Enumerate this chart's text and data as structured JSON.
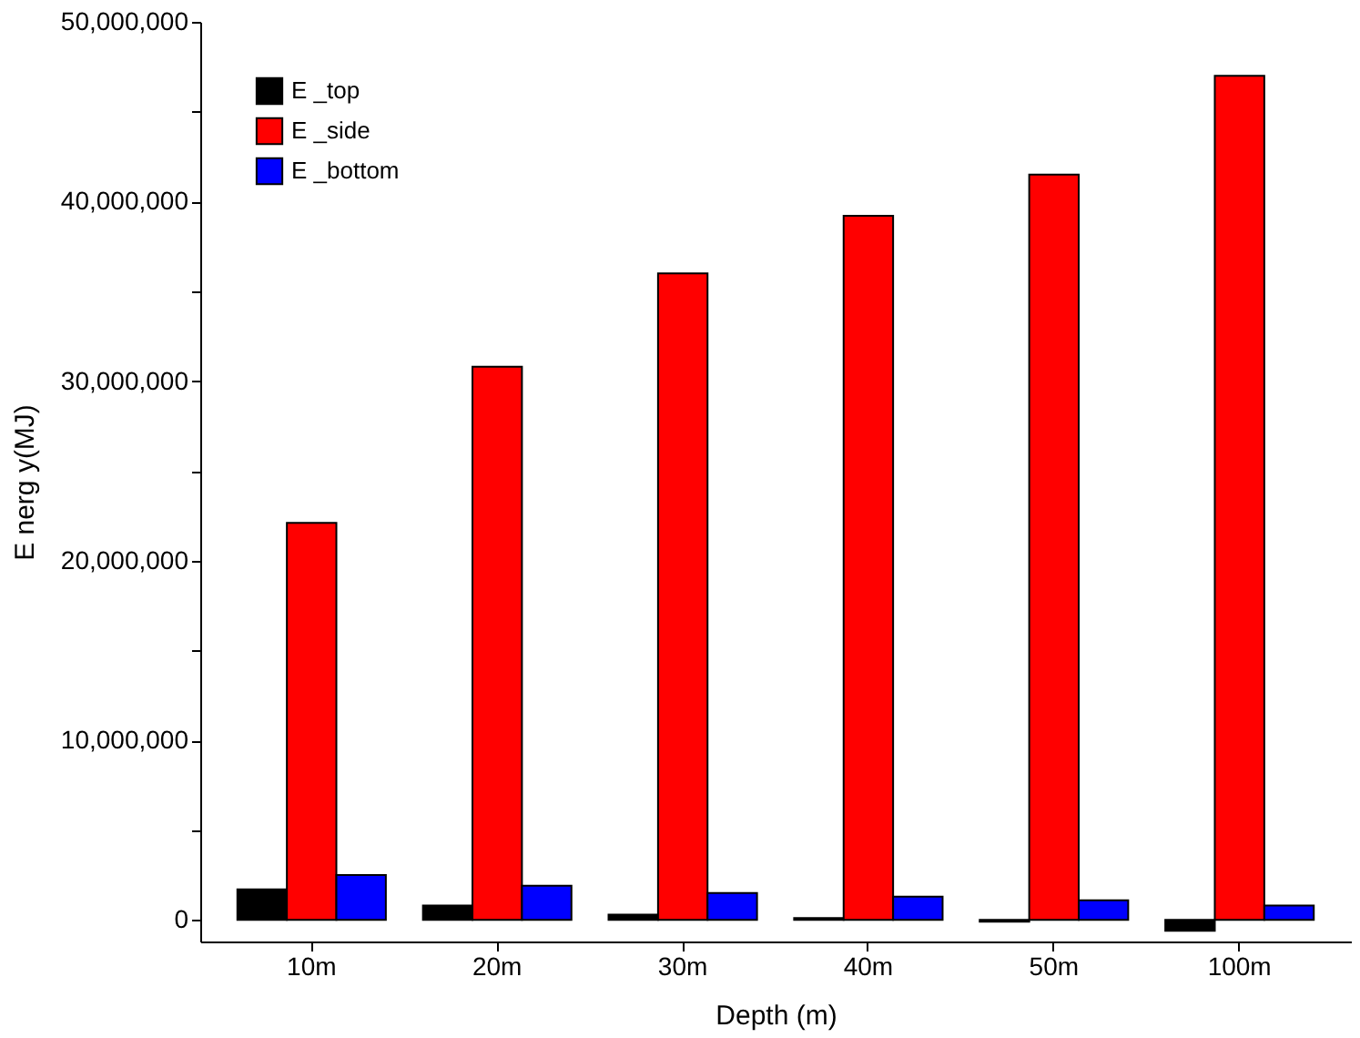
{
  "chart_data": {
    "type": "bar",
    "xlabel": "Depth (m)",
    "ylabel": "E nerg y(MJ)",
    "categories": [
      "10m",
      "20m",
      "30m",
      "40m",
      "50m",
      "100m"
    ],
    "series": [
      {
        "name": "E _top",
        "color": "#000000",
        "values": [
          1700000,
          800000,
          300000,
          100000,
          -100000,
          -600000
        ]
      },
      {
        "name": "E _side",
        "color": "#ff0000",
        "values": [
          22100000,
          30800000,
          36000000,
          39200000,
          41500000,
          47000000
        ]
      },
      {
        "name": "E _bottom",
        "color": "#0000ff",
        "values": [
          2500000,
          1900000,
          1500000,
          1300000,
          1100000,
          800000
        ]
      }
    ],
    "ylim": [
      -1200000,
      50000000
    ],
    "yticks": [
      0,
      {
        "value": 5000000,
        "label": null
      },
      {
        "value": 10000000,
        "label": "10,000,000"
      },
      {
        "value": 15000000,
        "label": null
      },
      {
        "value": 20000000,
        "label": "20,000,000"
      },
      {
        "value": 25000000,
        "label": null
      },
      {
        "value": 30000000,
        "label": "30,000,000"
      },
      {
        "value": 35000000,
        "label": null
      },
      {
        "value": 40000000,
        "label": "40,000,000"
      },
      {
        "value": 45000000,
        "label": null
      },
      {
        "value": 50000000,
        "label": "50,000,000"
      }
    ],
    "grid": false,
    "legend": "top left"
  }
}
